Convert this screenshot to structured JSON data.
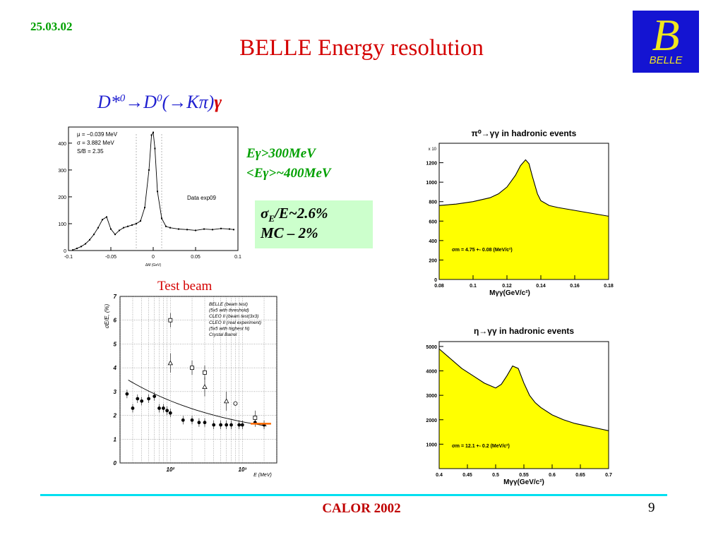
{
  "header": {
    "date": "25.03.02",
    "title": "BELLE  Energy resolution",
    "logo_letter": "B",
    "logo_word": "BELLE"
  },
  "decay": {
    "prefix": "D*",
    "sup1": "0",
    "mid1": "→D",
    "sup2": "0",
    "mid2": "(→Kπ)",
    "gamma": "γ"
  },
  "cuts": {
    "line1": "Eγ>300MeV",
    "line2": "<Eγ>~400MeV"
  },
  "resolution": {
    "sigma": "σ",
    "sub": "E",
    "rest": "/E~2.6%",
    "mc": "MC – 2%"
  },
  "test_beam_label": "Test beam",
  "footer": {
    "conference": "CALOR 2002",
    "page": "9"
  },
  "colors": {
    "title_red": "#d40000",
    "date_green": "#00a000",
    "fill_yellow": "#ffff00",
    "decay_blue": "#2020d0",
    "logo_blue": "#1414d2",
    "line_cyan": "#00e0f0",
    "box_green": "#ccffcc"
  },
  "chart_data": [
    {
      "type": "scatter",
      "title": "",
      "legend": [
        "μ = −0.039 MeV",
        "σ = 3.882 MeV",
        "S/B = 2.35"
      ],
      "annotation": "Data exp09",
      "xlabel": "ΔM (GeV)",
      "xticks": [
        "-0.1",
        "-0.05",
        "0",
        "0.05",
        "0.1"
      ],
      "yticks": [
        "0",
        "100",
        "200",
        "300",
        "400"
      ],
      "xlim": [
        -0.1,
        0.1
      ],
      "ylim": [
        0,
        460
      ],
      "x": [
        -0.095,
        -0.09,
        -0.085,
        -0.08,
        -0.075,
        -0.07,
        -0.065,
        -0.06,
        -0.055,
        -0.05,
        -0.045,
        -0.04,
        -0.035,
        -0.03,
        -0.025,
        -0.02,
        -0.015,
        -0.01,
        -0.005,
        -0.002,
        0,
        0.002,
        0.005,
        0.01,
        0.015,
        0.02,
        0.03,
        0.04,
        0.05,
        0.06,
        0.07,
        0.08,
        0.09,
        0.095
      ],
      "y": [
        2,
        8,
        15,
        25,
        40,
        60,
        85,
        115,
        125,
        80,
        60,
        75,
        85,
        90,
        95,
        100,
        110,
        160,
        300,
        430,
        440,
        380,
        220,
        120,
        90,
        85,
        80,
        78,
        75,
        80,
        78,
        82,
        80,
        78
      ]
    },
    {
      "type": "scatter",
      "title": "",
      "ylabel": "σE/E, (%)",
      "xlabel": "E (MeV)",
      "xscale": "log",
      "xlim": [
        20,
        3000
      ],
      "ylim": [
        0,
        7
      ],
      "yticks": [
        "0",
        "1",
        "2",
        "3",
        "4",
        "5",
        "6",
        "7"
      ],
      "xticks": [
        "10²",
        "10³"
      ],
      "legend": [
        "BELLE (beam test)",
        "(5x5 with threshold)",
        "CLEO II (beam test(3x3)",
        "CLEO II (real experiment)",
        "(5x5 with highest N)",
        "Crystal Barrel"
      ],
      "series": [
        {
          "name": "BELLE (beam test)",
          "x": [
            25,
            30,
            35,
            40,
            50,
            60,
            70,
            80,
            90,
            100,
            150,
            200,
            250,
            300,
            400,
            500,
            600,
            700,
            900,
            1000,
            1500,
            2000
          ],
          "y": [
            2.9,
            2.3,
            2.7,
            2.6,
            2.7,
            2.8,
            2.3,
            2.3,
            2.2,
            2.1,
            1.8,
            1.8,
            1.7,
            1.7,
            1.6,
            1.6,
            1.6,
            1.6,
            1.6,
            1.6,
            1.7,
            1.6
          ]
        },
        {
          "name": "CLEO II (beam test(3x3)",
          "x": [
            100,
            200,
            300,
            1500
          ],
          "y": [
            6.0,
            4.0,
            3.8,
            1.9
          ]
        },
        {
          "name": "CLEO II (real experiment)",
          "x": [
            100,
            300,
            600
          ],
          "y": [
            4.2,
            3.2,
            2.6
          ]
        },
        {
          "name": "Crystal Barrel",
          "x": [
            800
          ],
          "y": [
            2.5
          ]
        }
      ]
    },
    {
      "type": "area",
      "title": "π⁰→γγ in hadronic events",
      "ylabel_scale": "x 10",
      "xlabel": "Mγγ(GeV/c²)",
      "annotation": "σm = 4.75 +- 0.08 (MeV/c²)",
      "xlim": [
        0.08,
        0.18
      ],
      "ylim": [
        0,
        1400
      ],
      "xticks": [
        "0.08",
        "0.1",
        "0.12",
        "0.14",
        "0.16",
        "0.18"
      ],
      "yticks": [
        "0",
        "200",
        "400",
        "600",
        "800",
        "1000",
        "1200"
      ],
      "x": [
        0.08,
        0.09,
        0.1,
        0.11,
        0.115,
        0.12,
        0.125,
        0.128,
        0.131,
        0.133,
        0.135,
        0.138,
        0.14,
        0.145,
        0.15,
        0.16,
        0.17,
        0.18
      ],
      "y": [
        760,
        775,
        800,
        840,
        880,
        950,
        1070,
        1170,
        1230,
        1190,
        1060,
        880,
        810,
        760,
        740,
        710,
        680,
        650
      ]
    },
    {
      "type": "area",
      "title": "η→γγ in hadronic events",
      "xlabel": "Mγγ(GeV/c²)",
      "annotation": "σm = 12.1 +- 0.2 (MeV/c²)",
      "xlim": [
        0.4,
        0.7
      ],
      "ylim": [
        0,
        5200
      ],
      "xticks": [
        "0.4",
        "0.45",
        "0.5",
        "0.55",
        "0.6",
        "0.65",
        "0.7"
      ],
      "yticks": [
        "1000",
        "2000",
        "3000",
        "4000",
        "5000"
      ],
      "x": [
        0.4,
        0.42,
        0.44,
        0.46,
        0.48,
        0.5,
        0.51,
        0.52,
        0.53,
        0.54,
        0.55,
        0.56,
        0.57,
        0.58,
        0.6,
        0.62,
        0.64,
        0.66,
        0.68,
        0.7
      ],
      "y": [
        4900,
        4500,
        4100,
        3800,
        3500,
        3300,
        3450,
        3800,
        4200,
        4100,
        3500,
        3000,
        2700,
        2500,
        2200,
        2000,
        1850,
        1750,
        1650,
        1550
      ]
    }
  ]
}
